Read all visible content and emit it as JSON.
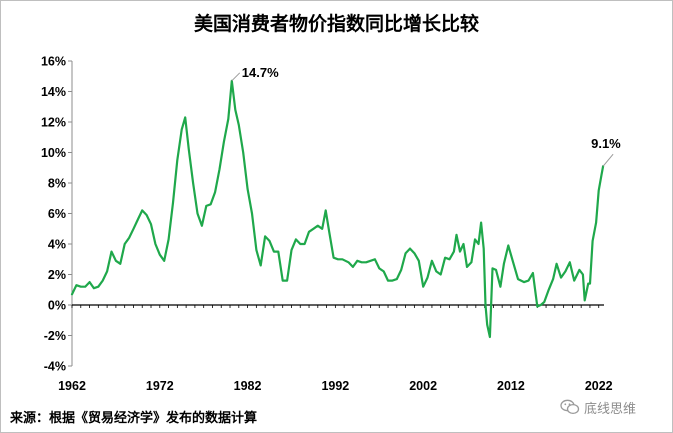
{
  "chart_data": {
    "type": "line",
    "title": "美国消费者物价指数同比增长比较",
    "xlabel": "",
    "ylabel": "",
    "xlim": [
      1962,
      2022.6
    ],
    "ylim": [
      -4,
      16
    ],
    "yticks": [
      -4,
      -2,
      0,
      2,
      4,
      6,
      8,
      10,
      12,
      14,
      16
    ],
    "ytick_labels": [
      "-4%",
      "-2%",
      "0%",
      "2%",
      "4%",
      "6%",
      "8%",
      "10%",
      "12%",
      "14%",
      "16%"
    ],
    "xticks": [
      1962,
      1972,
      1982,
      1992,
      2002,
      2012,
      2022
    ],
    "xtick_labels": [
      "1962",
      "1972",
      "1982",
      "1992",
      "2002",
      "2012",
      "2022"
    ],
    "grid": false,
    "legend": "none",
    "line_color": "#1fa84b",
    "series": [
      {
        "name": "",
        "x": [
          1962.0,
          1962.5,
          1963.0,
          1963.5,
          1964.0,
          1964.5,
          1965.0,
          1965.5,
          1966.0,
          1966.5,
          1967.0,
          1967.5,
          1968.0,
          1968.5,
          1969.0,
          1969.5,
          1970.0,
          1970.5,
          1971.0,
          1971.5,
          1972.0,
          1972.5,
          1973.0,
          1973.5,
          1974.0,
          1974.5,
          1974.9,
          1975.3,
          1975.8,
          1976.3,
          1976.8,
          1977.3,
          1977.8,
          1978.3,
          1978.8,
          1979.3,
          1979.8,
          1980.2,
          1980.6,
          1981.0,
          1981.5,
          1982.0,
          1982.5,
          1983.0,
          1983.5,
          1984.0,
          1984.5,
          1985.0,
          1985.5,
          1986.0,
          1986.5,
          1987.0,
          1987.5,
          1988.0,
          1988.5,
          1989.0,
          1989.5,
          1990.0,
          1990.5,
          1990.9,
          1991.3,
          1991.8,
          1992.3,
          1992.8,
          1993.5,
          1994.0,
          1994.5,
          1995.0,
          1995.5,
          1996.0,
          1996.5,
          1997.0,
          1997.5,
          1998.0,
          1998.5,
          1999.0,
          1999.5,
          2000.0,
          2000.5,
          2001.0,
          2001.5,
          2002.0,
          2002.5,
          2003.0,
          2003.5,
          2004.0,
          2004.5,
          2005.0,
          2005.5,
          2005.8,
          2006.2,
          2006.6,
          2007.0,
          2007.5,
          2007.9,
          2008.3,
          2008.6,
          2008.9,
          2009.1,
          2009.3,
          2009.6,
          2009.9,
          2010.3,
          2010.8,
          2011.2,
          2011.7,
          2012.2,
          2012.8,
          2013.5,
          2014.0,
          2014.5,
          2015.0,
          2015.4,
          2015.8,
          2016.3,
          2016.8,
          2017.2,
          2017.7,
          2018.2,
          2018.7,
          2019.2,
          2019.8,
          2020.2,
          2020.4,
          2020.8,
          2021.0,
          2021.3,
          2021.7,
          2022.0,
          2022.3,
          2022.5
        ],
        "values": [
          0.7,
          1.3,
          1.2,
          1.2,
          1.5,
          1.1,
          1.2,
          1.6,
          2.2,
          3.5,
          2.9,
          2.7,
          4.0,
          4.4,
          5.0,
          5.6,
          6.2,
          5.9,
          5.3,
          4.0,
          3.3,
          2.9,
          4.3,
          6.7,
          9.5,
          11.5,
          12.3,
          10.2,
          8.0,
          6.0,
          5.2,
          6.5,
          6.6,
          7.4,
          8.9,
          10.7,
          12.2,
          14.7,
          12.8,
          11.8,
          10.0,
          7.6,
          6.0,
          3.6,
          2.6,
          4.5,
          4.2,
          3.5,
          3.5,
          1.6,
          1.6,
          3.6,
          4.3,
          4.0,
          4.0,
          4.8,
          5.0,
          5.2,
          5.0,
          6.2,
          4.8,
          3.1,
          3.0,
          3.0,
          2.8,
          2.5,
          2.9,
          2.8,
          2.8,
          2.9,
          3.0,
          2.4,
          2.2,
          1.6,
          1.6,
          1.7,
          2.3,
          3.4,
          3.7,
          3.4,
          2.9,
          1.2,
          1.8,
          2.9,
          2.2,
          2.0,
          3.1,
          3.0,
          3.5,
          4.6,
          3.5,
          4.0,
          2.5,
          2.8,
          4.3,
          4.0,
          5.4,
          3.7,
          0.0,
          -1.3,
          -2.1,
          2.4,
          2.3,
          1.2,
          2.7,
          3.9,
          2.9,
          1.7,
          1.5,
          1.6,
          2.1,
          -0.1,
          0.0,
          0.2,
          1.0,
          1.7,
          2.7,
          1.8,
          2.2,
          2.8,
          1.6,
          2.3,
          2.0,
          0.3,
          1.4,
          1.4,
          4.2,
          5.4,
          7.5,
          8.5,
          9.1
        ]
      }
    ],
    "annotations": [
      {
        "text": "14.7%",
        "x": 1980.2,
        "y": 14.7
      },
      {
        "text": "9.1%",
        "x": 2022.5,
        "y": 9.1
      }
    ]
  },
  "source": "来源：根据《贸易经济学》发布的数据计算",
  "watermark": {
    "text": "底线思维",
    "icon": "wechat-icon"
  }
}
